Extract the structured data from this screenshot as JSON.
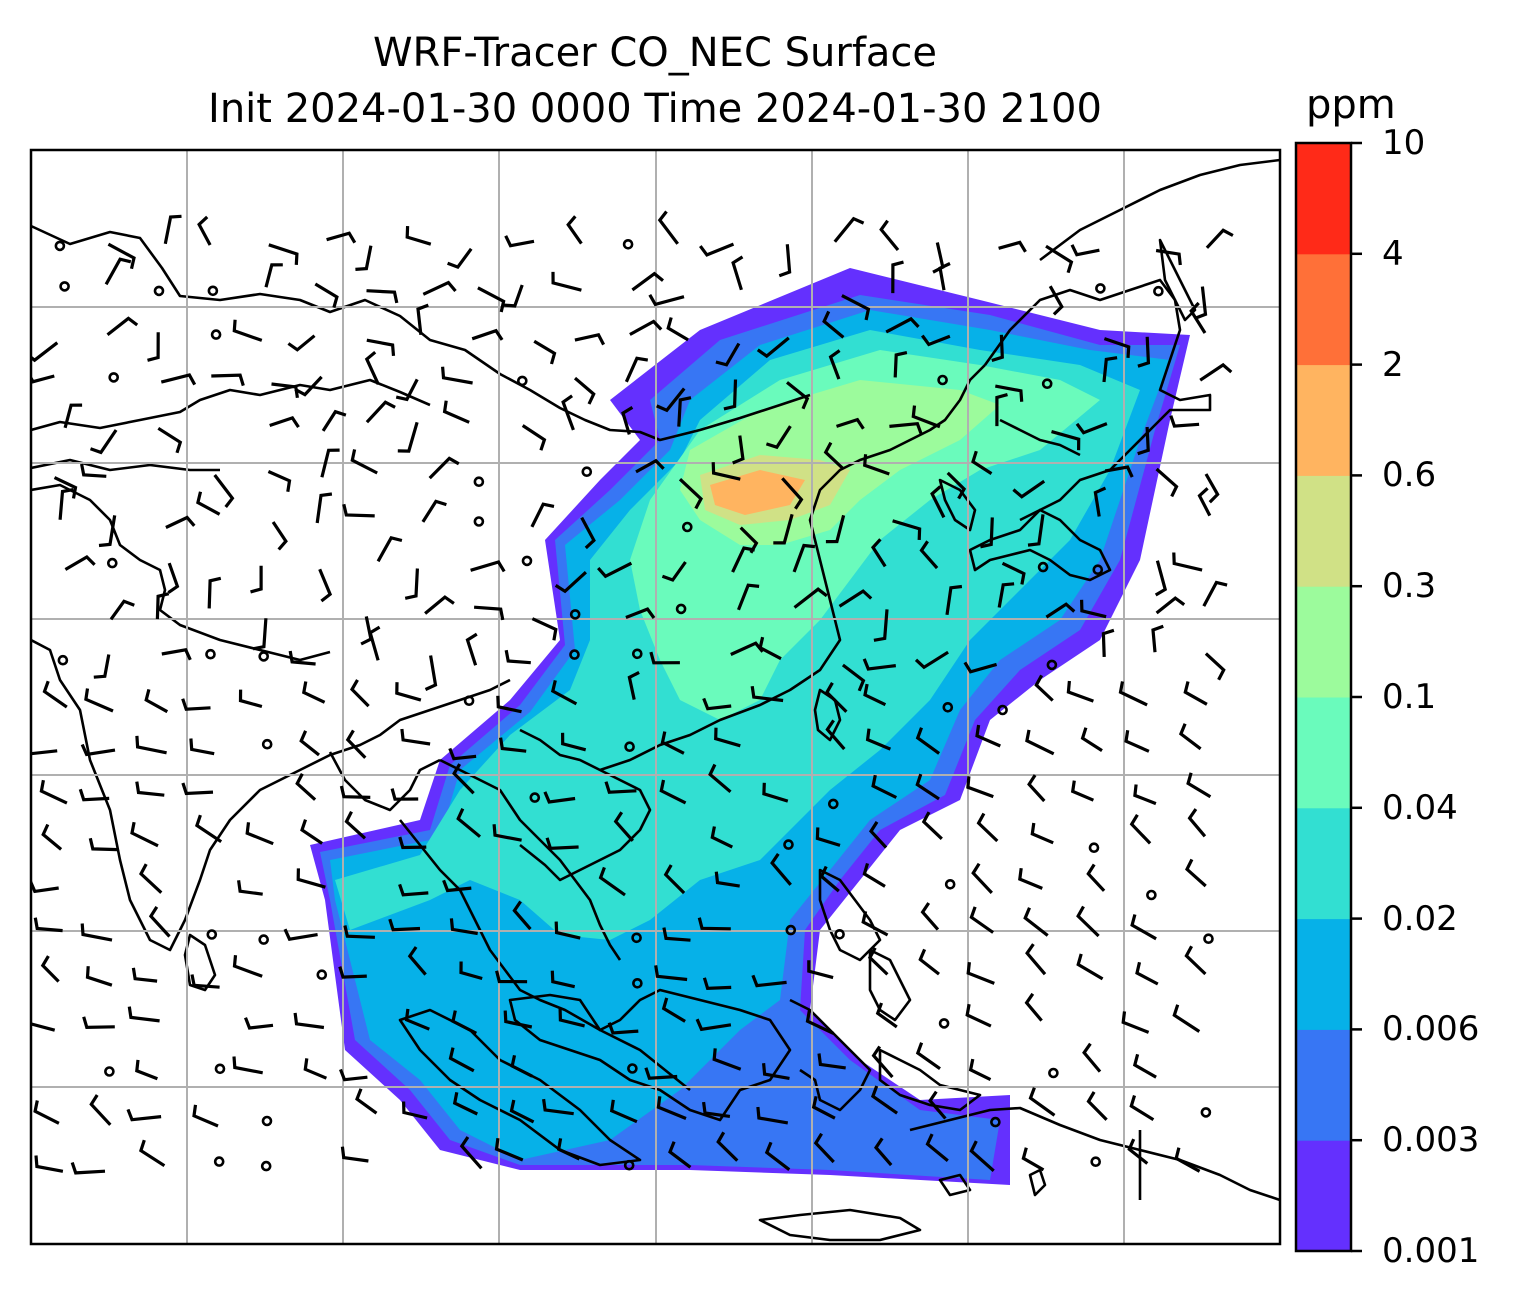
{
  "title_line1": "WRF-Tracer CO_NEC Surface",
  "title_line2": "Init 2024-01-30 0000 Time 2024-01-30 2100",
  "colorbar": {
    "unit": "ppm",
    "ticks": [
      "0.001",
      "0.003",
      "0.006",
      "0.02",
      "0.04",
      "0.1",
      "0.3",
      "0.6",
      "2",
      "4",
      "10"
    ],
    "colors": [
      "#6430fe",
      "#3776f4",
      "#06b1e8",
      "#32dfd2",
      "#6afbbc",
      "#9cfb9c",
      "#d0e186",
      "#ffb460",
      "#ff7038",
      "#ff2a18"
    ]
  }
}
